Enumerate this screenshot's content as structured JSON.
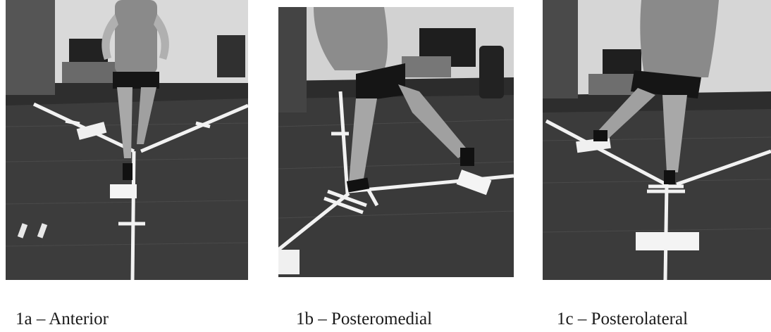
{
  "figure": {
    "panels": [
      {
        "caption": "1a – Anterior"
      },
      {
        "caption": "1b – Posteromedial"
      },
      {
        "caption": "1c – Posterolateral"
      }
    ]
  }
}
